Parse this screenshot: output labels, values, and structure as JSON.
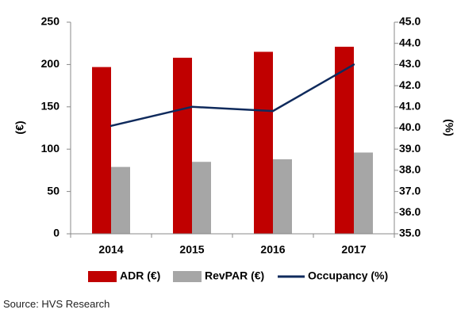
{
  "chart_data": {
    "type": "bar",
    "categories": [
      "2014",
      "2015",
      "2016",
      "2017"
    ],
    "series": [
      {
        "name": "ADR (€)",
        "type": "bar",
        "axis": "left",
        "color": "#c00000",
        "values": [
          197,
          208,
          215,
          221
        ]
      },
      {
        "name": "RevPAR (€)",
        "type": "bar",
        "axis": "left",
        "color": "#a6a6a6",
        "values": [
          79,
          85,
          88,
          96
        ]
      },
      {
        "name": "Occupancy (%)",
        "type": "line",
        "axis": "right",
        "color": "#0f2a5c",
        "values": [
          40.1,
          41.0,
          40.8,
          43.0
        ]
      }
    ],
    "ylabel_left": "(€)",
    "ylabel_right": "(%)",
    "ylim_left": [
      0,
      250
    ],
    "yticks_left": [
      "0",
      "50",
      "100",
      "150",
      "200",
      "250"
    ],
    "ylim_right": [
      35.0,
      45.0
    ],
    "yticks_right": [
      "35.0",
      "36.0",
      "37.0",
      "38.0",
      "39.0",
      "40.0",
      "41.0",
      "42.0",
      "43.0",
      "44.0",
      "45.0"
    ],
    "grid": false,
    "legend_position": "bottom"
  },
  "source": "Source: HVS Research"
}
